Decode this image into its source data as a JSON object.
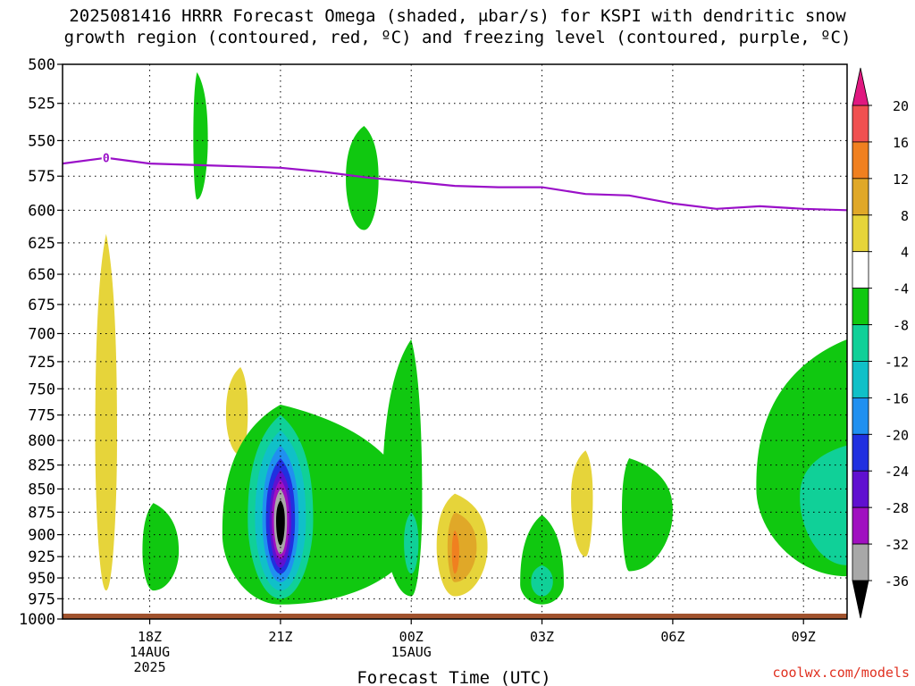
{
  "chart_data": {
    "type": "heatmap",
    "title_line1": "2025081416 HRRR Forecast Omega (shaded, μbar/s) for KSPI with dendritic snow",
    "title_line2": "growth region (contoured, red, ºC) and freezing level (contoured, purple, ºC)",
    "xlabel": "Forecast Time (UTC)",
    "x_ticks": [
      {
        "label": "18Z",
        "sub1": "14AUG",
        "sub2": "2025",
        "time": "2025-08-14T18:00Z"
      },
      {
        "label": "21Z",
        "sub1": "",
        "sub2": "",
        "time": "2025-08-14T21:00Z"
      },
      {
        "label": "00Z",
        "sub1": "15AUG",
        "sub2": "",
        "time": "2025-08-15T00:00Z"
      },
      {
        "label": "03Z",
        "sub1": "",
        "sub2": "",
        "time": "2025-08-15T03:00Z"
      },
      {
        "label": "06Z",
        "sub1": "",
        "sub2": "",
        "time": "2025-08-15T06:00Z"
      },
      {
        "label": "09Z",
        "sub1": "",
        "sub2": "",
        "time": "2025-08-15T09:00Z"
      }
    ],
    "x_range": [
      "2025-08-14T16:00Z",
      "2025-08-15T10:00Z"
    ],
    "y_ticks": [
      500,
      525,
      550,
      575,
      600,
      625,
      650,
      675,
      700,
      725,
      750,
      775,
      800,
      825,
      850,
      875,
      900,
      925,
      950,
      975,
      1000
    ],
    "y_range": [
      500,
      1000
    ],
    "y_scale": "log-pressure",
    "grid": true,
    "colorbar": {
      "labels": [
        "20",
        "16",
        "12",
        "8",
        "4",
        "-4",
        "-8",
        "-12",
        "-16",
        "-20",
        "-24",
        "-28",
        "-32",
        "-36"
      ],
      "bins": [
        {
          "min": 16,
          "max": 20,
          "color": "#f05050"
        },
        {
          "min": 12,
          "max": 16,
          "color": "#f08020"
        },
        {
          "min": 8,
          "max": 12,
          "color": "#e0a828"
        },
        {
          "min": 4,
          "max": 8,
          "color": "#e6d43a"
        },
        {
          "min": -4,
          "max": 4,
          "color": "#ffffff"
        },
        {
          "min": -8,
          "max": -4,
          "color": "#10c810"
        },
        {
          "min": -12,
          "max": -8,
          "color": "#10d098"
        },
        {
          "min": -16,
          "max": -12,
          "color": "#10c0c8"
        },
        {
          "min": -20,
          "max": -16,
          "color": "#2090f0"
        },
        {
          "min": -24,
          "max": -20,
          "color": "#2030e0"
        },
        {
          "min": -28,
          "max": -24,
          "color": "#6010d0"
        },
        {
          "min": -32,
          "max": -28,
          "color": "#a010c0"
        },
        {
          "min": -36,
          "max": -32,
          "color": "#a8a8a8"
        }
      ],
      "top_arrow_color": "#e01880",
      "bottom_arrow_color": "#000000"
    },
    "freezing_level": {
      "label": "0",
      "color": "#9a10c8",
      "points": [
        {
          "t": "2025-08-14T16:00Z",
          "p": 566
        },
        {
          "t": "2025-08-14T17:00Z",
          "p": 562
        },
        {
          "t": "2025-08-14T18:00Z",
          "p": 566
        },
        {
          "t": "2025-08-14T20:00Z",
          "p": 568
        },
        {
          "t": "2025-08-14T21:00Z",
          "p": 569
        },
        {
          "t": "2025-08-14T22:00Z",
          "p": 572
        },
        {
          "t": "2025-08-14T23:00Z",
          "p": 576
        },
        {
          "t": "2025-08-15T00:00Z",
          "p": 579
        },
        {
          "t": "2025-08-15T01:00Z",
          "p": 582
        },
        {
          "t": "2025-08-15T02:00Z",
          "p": 583
        },
        {
          "t": "2025-08-15T03:00Z",
          "p": 583
        },
        {
          "t": "2025-08-15T04:00Z",
          "p": 588
        },
        {
          "t": "2025-08-15T05:00Z",
          "p": 589
        },
        {
          "t": "2025-08-15T06:00Z",
          "p": 595
        },
        {
          "t": "2025-08-15T07:00Z",
          "p": 599
        },
        {
          "t": "2025-08-15T08:00Z",
          "p": 597
        },
        {
          "t": "2025-08-15T09:00Z",
          "p": 599
        },
        {
          "t": "2025-08-15T10:00Z",
          "p": 600
        }
      ]
    },
    "omega_regions": [
      {
        "name": "green-upper-19z",
        "color": "#10c810",
        "t_min": "2025-08-14T19:00Z",
        "t_max": "2025-08-14T19:20Z",
        "t_peak": "2025-08-14T19:05Z",
        "p_top": 505,
        "p_bottom": 592,
        "p_mid": 550
      },
      {
        "name": "green-upper-2230z",
        "color": "#10c810",
        "t_min": "2025-08-14T22:30Z",
        "t_max": "2025-08-14T23:15Z",
        "t_peak": "2025-08-14T22:55Z",
        "p_top": 540,
        "p_bottom": 615,
        "p_mid": 578
      },
      {
        "name": "yellow-column-17z",
        "color": "#e6d43a",
        "t_min": "2025-08-14T16:45Z",
        "t_max": "2025-08-14T17:15Z",
        "t_peak": "2025-08-14T17:00Z",
        "p_top": 618,
        "p_bottom": 965,
        "p_mid": 800
      },
      {
        "name": "yellow-20z",
        "color": "#e6d43a",
        "t_min": "2025-08-14T19:45Z",
        "t_max": "2025-08-14T20:15Z",
        "t_peak": "2025-08-14T20:05Z",
        "p_top": 730,
        "p_bottom": 815,
        "p_mid": 775
      },
      {
        "name": "green-1830z",
        "color": "#10c810",
        "t_min": "2025-08-14T17:50Z",
        "t_max": "2025-08-14T18:40Z",
        "t_peak": "2025-08-14T18:05Z",
        "p_top": 865,
        "p_bottom": 965,
        "p_mid": 920
      },
      {
        "name": "green-main-21z",
        "color": "#10c810",
        "t_min": "2025-08-14T19:40Z",
        "t_max": "2025-08-15T00:05Z",
        "t_peak": "2025-08-14T21:00Z",
        "p_top": 765,
        "p_bottom": 982,
        "p_mid": 900
      },
      {
        "name": "green-plume-00z",
        "color": "#10c810",
        "t_min": "2025-08-14T23:20Z",
        "t_max": "2025-08-15T00:15Z",
        "t_peak": "2025-08-15T00:00Z",
        "p_top": 705,
        "p_bottom": 972,
        "p_mid": 870
      },
      {
        "name": "teal-2330z",
        "color": "#10d098",
        "t_min": "2025-08-14T23:50Z",
        "t_max": "2025-08-15T00:10Z",
        "t_peak": "2025-08-15T00:00Z",
        "p_top": 875,
        "p_bottom": 945,
        "p_mid": 910
      },
      {
        "name": "ring-8-21z",
        "color": "#10d098",
        "t_min": "2025-08-14T20:15Z",
        "t_max": "2025-08-14T21:45Z",
        "t_peak": "2025-08-14T21:00Z",
        "p_top": 775,
        "p_bottom": 975,
        "p_mid": 885
      },
      {
        "name": "ring-12-21z",
        "color": "#10c0c8",
        "t_min": "2025-08-14T20:25Z",
        "t_max": "2025-08-14T21:35Z",
        "t_peak": "2025-08-14T21:00Z",
        "p_top": 790,
        "p_bottom": 965,
        "p_mid": 885
      },
      {
        "name": "ring-16-21z",
        "color": "#2090f0",
        "t_min": "2025-08-14T20:35Z",
        "t_max": "2025-08-14T21:25Z",
        "t_peak": "2025-08-14T21:00Z",
        "p_top": 805,
        "p_bottom": 955,
        "p_mid": 885
      },
      {
        "name": "ring-20-21z",
        "color": "#2030e0",
        "t_min": "2025-08-14T20:40Z",
        "t_max": "2025-08-14T21:20Z",
        "t_peak": "2025-08-14T21:00Z",
        "p_top": 818,
        "p_bottom": 945,
        "p_mid": 885
      },
      {
        "name": "ring-24-21z",
        "color": "#6010d0",
        "t_min": "2025-08-14T20:45Z",
        "t_max": "2025-08-14T21:15Z",
        "t_peak": "2025-08-14T21:00Z",
        "p_top": 830,
        "p_bottom": 938,
        "p_mid": 885
      },
      {
        "name": "ring-28-21z",
        "color": "#a010c0",
        "t_min": "2025-08-14T20:48Z",
        "t_max": "2025-08-14T21:12Z",
        "t_peak": "2025-08-14T21:00Z",
        "p_top": 840,
        "p_bottom": 928,
        "p_mid": 885
      },
      {
        "name": "ring-32-21z",
        "color": "#a8a8a8",
        "t_min": "2025-08-14T20:51Z",
        "t_max": "2025-08-14T21:09Z",
        "t_peak": "2025-08-14T21:00Z",
        "p_top": 850,
        "p_bottom": 922,
        "p_mid": 885
      },
      {
        "name": "ring-36-21z",
        "color": "#000000",
        "t_min": "2025-08-14T20:54Z",
        "t_max": "2025-08-14T21:06Z",
        "t_peak": "2025-08-14T21:00Z",
        "p_top": 862,
        "p_bottom": 912,
        "p_mid": 885
      },
      {
        "name": "yellow-01z",
        "color": "#e6d43a",
        "t_min": "2025-08-15T00:35Z",
        "t_max": "2025-08-15T01:45Z",
        "t_peak": "2025-08-15T01:00Z",
        "p_top": 855,
        "p_bottom": 972,
        "p_mid": 915
      },
      {
        "name": "amber-01z",
        "color": "#e0a828",
        "t_min": "2025-08-15T00:50Z",
        "t_max": "2025-08-15T01:30Z",
        "t_peak": "2025-08-15T01:00Z",
        "p_top": 875,
        "p_bottom": 955,
        "p_mid": 915
      },
      {
        "name": "orange-01z",
        "color": "#f08020",
        "t_min": "2025-08-15T00:56Z",
        "t_max": "2025-08-15T01:06Z",
        "t_peak": "2025-08-15T01:00Z",
        "p_top": 895,
        "p_bottom": 945,
        "p_mid": 920
      },
      {
        "name": "green-03z",
        "color": "#10c810",
        "t_min": "2025-08-15T02:30Z",
        "t_max": "2025-08-15T03:30Z",
        "t_peak": "2025-08-15T03:00Z",
        "p_top": 878,
        "p_bottom": 982,
        "p_mid": 958
      },
      {
        "name": "teal-03z",
        "color": "#10d098",
        "t_min": "2025-08-15T02:45Z",
        "t_max": "2025-08-15T03:15Z",
        "t_peak": "2025-08-15T03:00Z",
        "p_top": 935,
        "p_bottom": 972,
        "p_mid": 955
      },
      {
        "name": "yellow-04z",
        "color": "#e6d43a",
        "t_min": "2025-08-15T03:40Z",
        "t_max": "2025-08-15T04:10Z",
        "t_peak": "2025-08-15T04:00Z",
        "p_top": 810,
        "p_bottom": 925,
        "p_mid": 860
      },
      {
        "name": "green-05z",
        "color": "#10c810",
        "t_min": "2025-08-15T04:50Z",
        "t_max": "2025-08-15T06:00Z",
        "t_peak": "2025-08-15T05:00Z",
        "p_top": 818,
        "p_bottom": 942,
        "p_mid": 875
      },
      {
        "name": "green-09z",
        "color": "#10c810",
        "t_min": "2025-08-15T07:55Z",
        "t_max": "2025-08-15T10:00Z",
        "t_peak": "2025-08-15T10:00Z",
        "p_top": 705,
        "p_bottom": 948,
        "p_mid": 850
      },
      {
        "name": "teal-09z",
        "color": "#10d098",
        "t_min": "2025-08-15T08:55Z",
        "t_max": "2025-08-15T10:00Z",
        "t_peak": "2025-08-15T10:00Z",
        "p_top": 805,
        "p_bottom": 935,
        "p_mid": 860
      }
    ],
    "surface_strip_color": "#a0522d"
  },
  "credit": "coolwx.com/models"
}
